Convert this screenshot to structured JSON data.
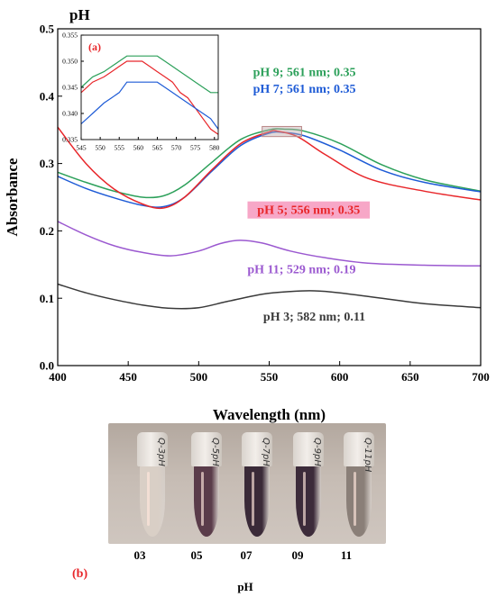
{
  "figure": {
    "corner_label": "pH",
    "panel_a_label": "(a)",
    "panel_b_label": "(b)",
    "photo_xlabel": "pH",
    "tubes": [
      {
        "ph": "03",
        "cap_text": "Q-3pH",
        "color": "#d9cfc6"
      },
      {
        "ph": "05",
        "cap_text": "Q-5pH",
        "color": "#5a3c4a"
      },
      {
        "ph": "07",
        "cap_text": "Q-7pH",
        "color": "#3a2a38"
      },
      {
        "ph": "09",
        "cap_text": "Q-9pH",
        "color": "#3c2b3a"
      },
      {
        "ph": "11",
        "cap_text": "Q-11pH",
        "color": "#8a7f78"
      }
    ]
  },
  "chart_data": [
    {
      "type": "line",
      "xlabel": "Wavelength (nm)",
      "ylabel": "Absorbance",
      "xlim": [
        400,
        700
      ],
      "ylim": [
        0,
        0.5
      ],
      "xticks": [
        400,
        450,
        500,
        550,
        600,
        650,
        700
      ],
      "yticks": [
        0.0,
        0.1,
        0.2,
        0.3,
        0.4,
        0.5
      ],
      "highlight_box": {
        "x": [
          545,
          573
        ],
        "y": [
          0.34,
          0.355
        ]
      },
      "annotations": [
        {
          "text": "pH 9; 561 nm; 0.35",
          "color": "#2ca05a",
          "x": 575,
          "y": 0.43
        },
        {
          "text": "pH 7; 561 nm; 0.35",
          "color": "#1e5bd6",
          "x": 575,
          "y": 0.405
        },
        {
          "text": "pH 5; 556 nm; 0.35",
          "color": "#e8262a",
          "x": 578,
          "y": 0.225,
          "background": "#f7a7c7"
        },
        {
          "text": "pH 11; 529 nm; 0.19",
          "color": "#9b59d0",
          "x": 573,
          "y": 0.137
        },
        {
          "text": "pH 3; 582 nm; 0.11",
          "color": "#3a3a3a",
          "x": 582,
          "y": 0.067
        }
      ],
      "series": [
        {
          "color": "#2ca05a",
          "x": [
            400,
            420,
            440,
            460,
            475,
            490,
            510,
            530,
            550,
            561,
            575,
            600,
            630,
            660,
            700
          ],
          "y": [
            0.287,
            0.272,
            0.259,
            0.25,
            0.252,
            0.268,
            0.303,
            0.336,
            0.35,
            0.351,
            0.348,
            0.33,
            0.298,
            0.276,
            0.259
          ]
        },
        {
          "color": "#1e5bd6",
          "x": [
            400,
            420,
            440,
            460,
            475,
            490,
            510,
            530,
            550,
            561,
            575,
            600,
            630,
            660,
            700
          ],
          "y": [
            0.281,
            0.263,
            0.249,
            0.238,
            0.236,
            0.25,
            0.29,
            0.327,
            0.345,
            0.346,
            0.341,
            0.32,
            0.29,
            0.272,
            0.258
          ]
        },
        {
          "color": "#e8262a",
          "x": [
            400,
            420,
            440,
            460,
            475,
            490,
            510,
            530,
            550,
            556,
            570,
            590,
            620,
            660,
            700
          ],
          "y": [
            0.354,
            0.3,
            0.262,
            0.24,
            0.234,
            0.25,
            0.292,
            0.33,
            0.347,
            0.348,
            0.34,
            0.313,
            0.278,
            0.259,
            0.246
          ]
        },
        {
          "color": "#9b59d0",
          "x": [
            400,
            420,
            440,
            460,
            480,
            500,
            515,
            529,
            545,
            565,
            590,
            620,
            660,
            700
          ],
          "y": [
            0.214,
            0.194,
            0.178,
            0.168,
            0.163,
            0.17,
            0.181,
            0.186,
            0.182,
            0.17,
            0.16,
            0.152,
            0.149,
            0.148
          ]
        },
        {
          "color": "#3a3a3a",
          "x": [
            400,
            420,
            440,
            460,
            480,
            500,
            520,
            545,
            565,
            582,
            600,
            630,
            660,
            700
          ],
          "y": [
            0.121,
            0.108,
            0.098,
            0.09,
            0.085,
            0.086,
            0.095,
            0.106,
            0.11,
            0.111,
            0.108,
            0.1,
            0.092,
            0.086
          ]
        }
      ]
    },
    {
      "type": "line",
      "xlim": [
        545,
        581
      ],
      "ylim": [
        0.335,
        0.355
      ],
      "xticks": [
        545,
        550,
        555,
        560,
        565,
        570,
        575,
        580
      ],
      "yticks": [
        0.335,
        0.34,
        0.345,
        0.35,
        0.355
      ],
      "series": [
        {
          "color": "#2ca05a",
          "x": [
            545,
            548,
            551,
            553,
            555,
            557,
            565,
            567,
            569,
            571,
            573,
            575,
            577,
            579,
            581
          ],
          "y": [
            0.345,
            0.347,
            0.348,
            0.349,
            0.35,
            0.351,
            0.351,
            0.35,
            0.349,
            0.348,
            0.347,
            0.346,
            0.345,
            0.344,
            0.344
          ]
        },
        {
          "color": "#e8262a",
          "x": [
            545,
            548,
            551,
            553,
            555,
            557,
            559,
            561,
            563,
            565,
            567,
            569,
            571,
            573,
            575,
            577,
            579,
            581
          ],
          "y": [
            0.344,
            0.346,
            0.347,
            0.348,
            0.349,
            0.35,
            0.35,
            0.35,
            0.349,
            0.348,
            0.347,
            0.346,
            0.344,
            0.343,
            0.341,
            0.339,
            0.337,
            0.336
          ]
        },
        {
          "color": "#1e5bd6",
          "x": [
            545,
            548,
            551,
            553,
            555,
            557,
            565,
            567,
            569,
            571,
            573,
            575,
            577,
            579,
            581
          ],
          "y": [
            0.338,
            0.34,
            0.342,
            0.343,
            0.344,
            0.346,
            0.346,
            0.345,
            0.344,
            0.343,
            0.342,
            0.341,
            0.34,
            0.339,
            0.337
          ]
        }
      ]
    }
  ]
}
